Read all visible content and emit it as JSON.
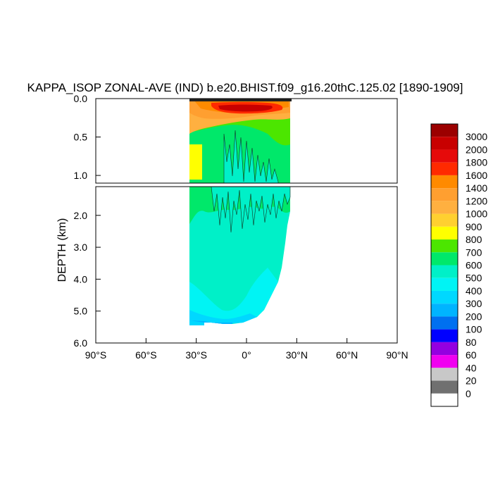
{
  "chart_data": {
    "type": "heatmap",
    "title": "KAPPA_ISOP ZONAL-AVE (IND) b.e20.BHIST.f09_g16.20thC.125.02 [1890-1909]",
    "ylabel": "DEPTH (km)",
    "x_ticks": [
      "90°S",
      "60°S",
      "30°S",
      "0°",
      "30°N",
      "60°N",
      "90°N"
    ],
    "xlim": [
      -90,
      90
    ],
    "upper_panel": {
      "ylim": [
        0.0,
        1.1
      ],
      "y_ticks": [
        "0.0",
        "0.5",
        "1.0"
      ],
      "y_tick_values": [
        0.0,
        0.5,
        1.0
      ]
    },
    "lower_panel": {
      "ylim": [
        1.1,
        6.0
      ],
      "y_ticks": [
        "2.0",
        "3.0",
        "4.0",
        "5.0",
        "6.0"
      ],
      "y_tick_values": [
        2.0,
        3.0,
        4.0,
        5.0,
        6.0
      ]
    },
    "data_extent_lat": [
      -34,
      25
    ],
    "colorbar": {
      "labels": [
        "3000",
        "2000",
        "1800",
        "1600",
        "1400",
        "1200",
        "1000",
        "900",
        "800",
        "700",
        "600",
        "500",
        "400",
        "300",
        "200",
        "100",
        "80",
        "60",
        "40",
        "20",
        "0"
      ],
      "colors": [
        "#9b0000",
        "#c80000",
        "#e60a0a",
        "#ff2a00",
        "#ff8a00",
        "#ff9f30",
        "#ffb040",
        "#ffd030",
        "#ffff00",
        "#4ce600",
        "#00e86a",
        "#00f0c8",
        "#00f4f4",
        "#00d8ff",
        "#00b4ff",
        "#0070f0",
        "#0000ff",
        "#9400e0",
        "#f000f0",
        "#c8c8c8",
        "#707070",
        "#ffffff"
      ]
    }
  }
}
